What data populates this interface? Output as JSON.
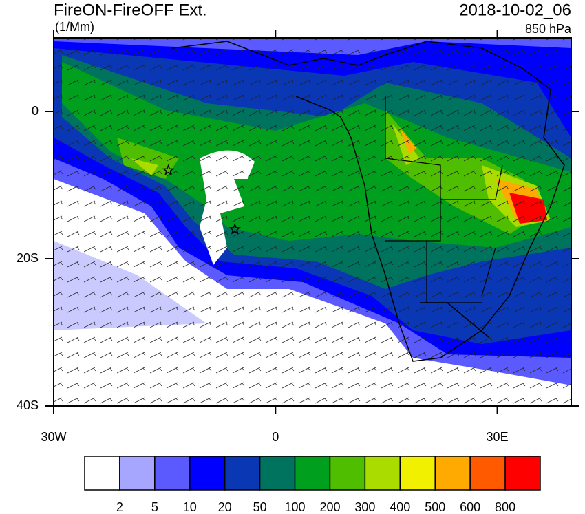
{
  "header": {
    "title": "FireON-FireOFF Ext.",
    "units": "(1/Mm)",
    "time": "2018-10-02_06",
    "level": "850 hPa"
  },
  "map": {
    "lon_range": [
      -30,
      40
    ],
    "lat_range": [
      -40,
      10
    ],
    "lon_ticks": [
      {
        "value": -30,
        "label": "30W"
      },
      {
        "value": 0,
        "label": "0"
      },
      {
        "value": 30,
        "label": "30E"
      }
    ],
    "lat_ticks": [
      {
        "value": 0,
        "label": "0"
      },
      {
        "value": -20,
        "label": "20S"
      },
      {
        "value": -40,
        "label": "40S"
      }
    ],
    "markers": [
      {
        "lon": -14.5,
        "lat": -8
      },
      {
        "lon": -5.5,
        "lat": -16
      }
    ]
  },
  "colorbar": {
    "colors": [
      "#ffffff",
      "#a6a6ff",
      "#5a5aff",
      "#0000ff",
      "#0a37b4",
      "#00735f",
      "#00a01e",
      "#50be00",
      "#aadc00",
      "#f0f000",
      "#ffaa00",
      "#ff5a00",
      "#ff0000"
    ],
    "levels": [
      2,
      5,
      10,
      20,
      50,
      100,
      200,
      300,
      400,
      500,
      600,
      800
    ]
  }
}
